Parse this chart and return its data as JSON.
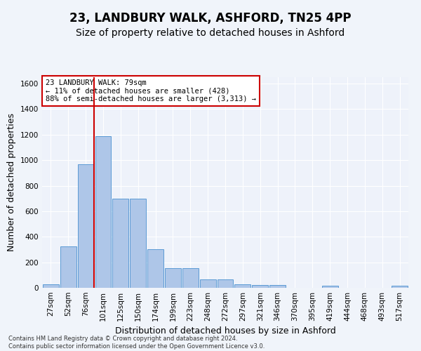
{
  "title_line1": "23, LANDBURY WALK, ASHFORD, TN25 4PP",
  "title_line2": "Size of property relative to detached houses in Ashford",
  "xlabel": "Distribution of detached houses by size in Ashford",
  "ylabel": "Number of detached properties",
  "footnote": "Contains HM Land Registry data © Crown copyright and database right 2024.\nContains public sector information licensed under the Open Government Licence v3.0.",
  "bar_labels": [
    "27sqm",
    "52sqm",
    "76sqm",
    "101sqm",
    "125sqm",
    "150sqm",
    "174sqm",
    "199sqm",
    "223sqm",
    "248sqm",
    "272sqm",
    "297sqm",
    "321sqm",
    "346sqm",
    "370sqm",
    "395sqm",
    "419sqm",
    "444sqm",
    "468sqm",
    "493sqm",
    "517sqm"
  ],
  "bar_values": [
    30,
    325,
    970,
    1190,
    700,
    700,
    300,
    155,
    155,
    65,
    65,
    25,
    20,
    20,
    0,
    0,
    15,
    0,
    0,
    0,
    15
  ],
  "bar_color": "#aec6e8",
  "bar_edge_color": "#5b9bd5",
  "ylim": [
    0,
    1650
  ],
  "yticks": [
    0,
    200,
    400,
    600,
    800,
    1000,
    1200,
    1400,
    1600
  ],
  "marker_bin_index": 2,
  "annotation_text": "23 LANDBURY WALK: 79sqm\n← 11% of detached houses are smaller (428)\n88% of semi-detached houses are larger (3,313) →",
  "annotation_box_color": "#ffffff",
  "annotation_box_edge_color": "#cc0000",
  "vline_color": "#cc0000",
  "background_color": "#f0f4fa",
  "plot_bg_color": "#eef2fa",
  "grid_color": "#ffffff",
  "title1_fontsize": 12,
  "title2_fontsize": 10,
  "ylabel_fontsize": 9,
  "xlabel_fontsize": 9,
  "tick_fontsize": 7.5,
  "annotation_fontsize": 7.5,
  "footnote_fontsize": 6.0
}
